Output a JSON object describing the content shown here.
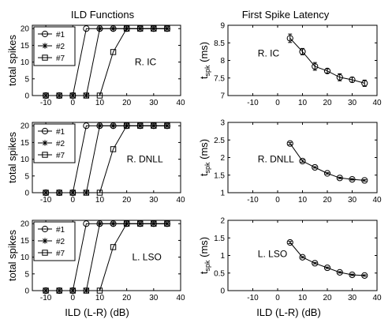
{
  "columns": {
    "left_title": "ILD Functions",
    "right_title": "First Spike Latency"
  },
  "shared_xlabel": "ILD (L-R) (dB)",
  "chart_data": [
    {
      "type": "line",
      "id": "ild-ic",
      "column": "left",
      "row": 0,
      "ylabel": "total spikes",
      "xlim": [
        -15,
        40
      ],
      "ylim": [
        0,
        21
      ],
      "xticks": [
        -10,
        0,
        10,
        20,
        30,
        40
      ],
      "yticks": [
        0,
        5,
        10,
        15,
        20
      ],
      "x": [
        -10,
        -5,
        0,
        5,
        10,
        15,
        20,
        25,
        30,
        35
      ],
      "series": [
        {
          "name": "#1",
          "marker": "circle",
          "values": [
            0,
            0,
            0,
            20,
            20,
            20,
            20,
            20,
            20,
            20
          ]
        },
        {
          "name": "#2",
          "marker": "star",
          "values": [
            0,
            0,
            0,
            0,
            20,
            20,
            20,
            20,
            20,
            20
          ]
        },
        {
          "name": "#7",
          "marker": "square",
          "values": [
            0,
            0,
            0,
            0,
            0,
            13,
            20,
            20,
            20,
            20
          ]
        }
      ],
      "legend": "top-left",
      "annotation": {
        "text": "R. IC",
        "x": 23,
        "y": 10
      }
    },
    {
      "type": "line",
      "id": "ild-dnll",
      "column": "left",
      "row": 1,
      "ylabel": "total spikes",
      "xlim": [
        -15,
        40
      ],
      "ylim": [
        0,
        21
      ],
      "xticks": [
        -10,
        0,
        10,
        20,
        30,
        40
      ],
      "yticks": [
        0,
        5,
        10,
        15,
        20
      ],
      "x": [
        -10,
        -5,
        0,
        5,
        10,
        15,
        20,
        25,
        30,
        35
      ],
      "series": [
        {
          "name": "#1",
          "marker": "circle",
          "values": [
            0,
            0,
            0,
            20,
            20,
            20,
            20,
            20,
            20,
            20
          ]
        },
        {
          "name": "#2",
          "marker": "star",
          "values": [
            0,
            0,
            0,
            0,
            20,
            20,
            20,
            20,
            20,
            20
          ]
        },
        {
          "name": "#7",
          "marker": "square",
          "values": [
            0,
            0,
            0,
            0,
            0,
            13,
            20,
            20,
            20,
            20
          ]
        }
      ],
      "legend": "top-left",
      "annotation": {
        "text": "R. DNLL",
        "x": 20,
        "y": 10
      }
    },
    {
      "type": "line",
      "id": "ild-lso",
      "column": "left",
      "row": 2,
      "ylabel": "total spikes",
      "xlim": [
        -15,
        40
      ],
      "ylim": [
        0,
        21
      ],
      "xticks": [
        -10,
        0,
        10,
        20,
        30,
        40
      ],
      "yticks": [
        0,
        5,
        10,
        15,
        20
      ],
      "x": [
        -10,
        -5,
        0,
        5,
        10,
        15,
        20,
        25,
        30,
        35
      ],
      "series": [
        {
          "name": "#1",
          "marker": "circle",
          "values": [
            0,
            0,
            0,
            20,
            20,
            20,
            20,
            20,
            20,
            20
          ]
        },
        {
          "name": "#2",
          "marker": "star",
          "values": [
            0,
            0,
            0,
            0,
            20,
            20,
            20,
            20,
            20,
            20
          ]
        },
        {
          "name": "#7",
          "marker": "square",
          "values": [
            0,
            0,
            0,
            0,
            0,
            13,
            20,
            20,
            20,
            20
          ]
        }
      ],
      "legend": "top-left",
      "annotation": {
        "text": "L. LSO",
        "x": 22,
        "y": 10
      }
    },
    {
      "type": "line",
      "id": "lat-ic",
      "column": "right",
      "row": 0,
      "ylabel_main": "t",
      "ylabel_sub": "spk",
      "ylabel_unit": "(ms)",
      "xlim": [
        -20,
        40
      ],
      "ylim": [
        7,
        9
      ],
      "xticks": [
        -10,
        0,
        10,
        20,
        30,
        40
      ],
      "yticks": [
        7,
        7.5,
        8,
        8.5,
        9
      ],
      "x": [
        5,
        10,
        15,
        20,
        25,
        30,
        35
      ],
      "series": [
        {
          "marker": "circle",
          "values": [
            8.63,
            8.25,
            7.83,
            7.7,
            7.52,
            7.45,
            7.35
          ],
          "err": [
            0.12,
            0.09,
            0.11,
            0.06,
            0.1,
            0.07,
            0.09
          ]
        }
      ],
      "annotation": {
        "text": "R. IC",
        "x": -8,
        "y": 8.2
      }
    },
    {
      "type": "line",
      "id": "lat-dnll",
      "column": "right",
      "row": 1,
      "ylabel_main": "t",
      "ylabel_sub": "spk",
      "ylabel_unit": "(ms)",
      "xlim": [
        -20,
        40
      ],
      "ylim": [
        1,
        3
      ],
      "xticks": [
        -10,
        0,
        10,
        20,
        30,
        40
      ],
      "yticks": [
        1,
        1.5,
        2,
        2.5,
        3
      ],
      "x": [
        5,
        10,
        15,
        20,
        25,
        30,
        35
      ],
      "series": [
        {
          "marker": "circle",
          "values": [
            2.4,
            1.9,
            1.72,
            1.55,
            1.42,
            1.38,
            1.35
          ],
          "err": [
            0.03,
            0.03,
            0.02,
            0.02,
            0.02,
            0.02,
            0.02
          ]
        }
      ],
      "annotation": {
        "text": "R. DNLL",
        "x": -8,
        "y": 1.95
      }
    },
    {
      "type": "line",
      "id": "lat-lso",
      "column": "right",
      "row": 2,
      "ylabel_main": "t",
      "ylabel_sub": "spk",
      "ylabel_unit": "(ms)",
      "xlim": [
        -20,
        40
      ],
      "ylim": [
        0,
        2
      ],
      "xticks": [
        -10,
        0,
        10,
        20,
        30,
        40
      ],
      "yticks": [
        0,
        0.5,
        1,
        1.5,
        2
      ],
      "x": [
        5,
        10,
        15,
        20,
        25,
        30,
        35
      ],
      "series": [
        {
          "marker": "circle",
          "values": [
            1.37,
            0.95,
            0.78,
            0.65,
            0.52,
            0.45,
            0.43
          ],
          "err": [
            0.03,
            0.02,
            0.02,
            0.02,
            0.02,
            0.02,
            0.02
          ]
        }
      ],
      "annotation": {
        "text": "L. LSO",
        "x": -8,
        "y": 1.05
      }
    }
  ]
}
